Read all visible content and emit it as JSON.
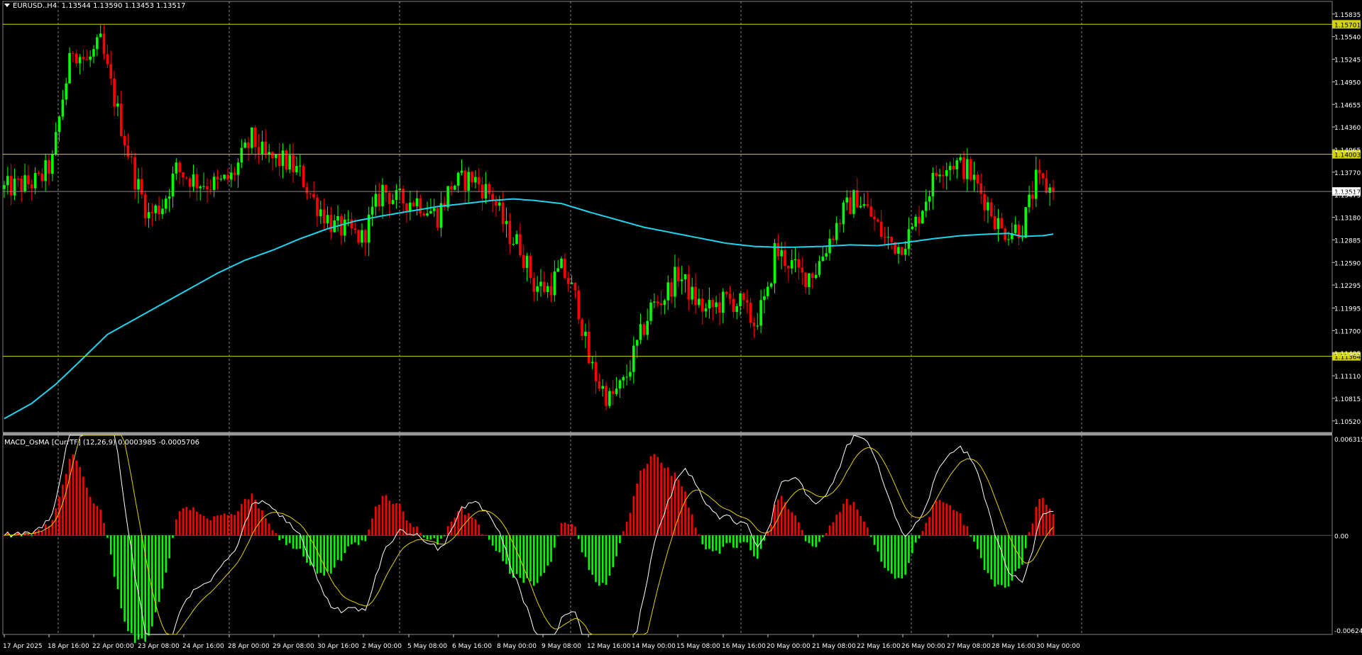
{
  "header": {
    "symbol": "EURUSD..H4",
    "ohlc": "1.13544 1.13590 1.13453 1.13517"
  },
  "indicator": {
    "label": "MACD_OsMA [CurrTF] (12,26,9) 0.0003985 -0.0005706"
  },
  "colors": {
    "background": "#000000",
    "bull": "#00ff00",
    "bear": "#ff0000",
    "ma": "#22d3ee",
    "hline": "#d4d400",
    "grid": "#bfbfbf",
    "macd": "#ffffff",
    "signal": "#e6d000"
  },
  "chart_data": [
    {
      "type": "candlestick",
      "ylim": [
        1.1037,
        1.16
      ],
      "grid": true,
      "price_ticks": [
        "1.15835",
        "1.15540",
        "1.15245",
        "1.14950",
        "1.14655",
        "1.14360",
        "1.14065",
        "1.13770",
        "1.13475",
        "1.13180",
        "1.12885",
        "1.12590",
        "1.12295",
        "1.11995",
        "1.11700",
        "1.11405",
        "1.11110",
        "1.10815",
        "1.10520"
      ],
      "horizontal_levels": [
        {
          "price": 1.15701,
          "label": "1.15701"
        },
        {
          "price": 1.14003,
          "label": "1.14003"
        },
        {
          "price": 1.11364,
          "label": "1.11364"
        }
      ],
      "current_price": {
        "price": 1.13517,
        "label": "1.13517"
      },
      "moving_average": [
        [
          0,
          1.1055
        ],
        [
          8,
          1.1075
        ],
        [
          15,
          1.11
        ],
        [
          22,
          1.113
        ],
        [
          30,
          1.1165
        ],
        [
          38,
          1.1185
        ],
        [
          46,
          1.1205
        ],
        [
          54,
          1.1225
        ],
        [
          62,
          1.1245
        ],
        [
          70,
          1.1262
        ],
        [
          78,
          1.1275
        ],
        [
          86,
          1.129
        ],
        [
          94,
          1.1303
        ],
        [
          102,
          1.1313
        ],
        [
          110,
          1.132
        ],
        [
          118,
          1.1326
        ],
        [
          126,
          1.1332
        ],
        [
          134,
          1.1336
        ],
        [
          142,
          1.134
        ],
        [
          148,
          1.1342
        ],
        [
          154,
          1.134
        ],
        [
          162,
          1.1336
        ],
        [
          170,
          1.1325
        ],
        [
          178,
          1.1315
        ],
        [
          186,
          1.1305
        ],
        [
          194,
          1.1298
        ],
        [
          202,
          1.1291
        ],
        [
          210,
          1.1284
        ],
        [
          218,
          1.128
        ],
        [
          224,
          1.1279
        ],
        [
          230,
          1.1279
        ],
        [
          238,
          1.128
        ],
        [
          246,
          1.1282
        ],
        [
          254,
          1.1281
        ],
        [
          262,
          1.1285
        ],
        [
          270,
          1.129
        ],
        [
          278,
          1.1294
        ],
        [
          286,
          1.1296
        ],
        [
          292,
          1.1297
        ],
        [
          296,
          1.1293
        ],
        [
          302,
          1.1294
        ],
        [
          305,
          1.1296
        ]
      ],
      "dates": [
        "17 Apr 2025",
        "18 Apr 16:00",
        "22 Apr 00:00",
        "23 Apr 08:00",
        "24 Apr 16:00",
        "28 Apr 00:00",
        "29 Apr 08:00",
        "30 Apr 16:00",
        "2 May 00:00",
        "5 May 08:00",
        "6 May 16:00",
        "8 May 00:00",
        "9 May 08:00",
        "12 May 16:00",
        "14 May 00:00",
        "15 May 08:00",
        "16 May 16:00",
        "20 May 00:00",
        "21 May 08:00",
        "22 May 16:00",
        "26 May 00:00",
        "27 May 08:00",
        "28 May 16:00",
        "30 May 00:00"
      ],
      "keyframes": [
        [
          0,
          1.1355
        ],
        [
          10,
          1.1365
        ],
        [
          14,
          1.139
        ],
        [
          17,
          1.1475
        ],
        [
          20,
          1.154
        ],
        [
          24,
          1.152
        ],
        [
          28,
          1.1545
        ],
        [
          31,
          1.149
        ],
        [
          35,
          1.142
        ],
        [
          38,
          1.137
        ],
        [
          42,
          1.132
        ],
        [
          46,
          1.1335
        ],
        [
          50,
          1.138
        ],
        [
          56,
          1.1365
        ],
        [
          62,
          1.136
        ],
        [
          66,
          1.137
        ],
        [
          72,
          1.142
        ],
        [
          76,
          1.1395
        ],
        [
          82,
          1.139
        ],
        [
          86,
          1.1375
        ],
        [
          90,
          1.134
        ],
        [
          96,
          1.1305
        ],
        [
          100,
          1.13
        ],
        [
          104,
          1.129
        ],
        [
          110,
          1.1355
        ],
        [
          114,
          1.134
        ],
        [
          120,
          1.134
        ],
        [
          126,
          1.132
        ],
        [
          130,
          1.136
        ],
        [
          136,
          1.137
        ],
        [
          142,
          1.1345
        ],
        [
          146,
          1.13
        ],
        [
          150,
          1.128
        ],
        [
          154,
          1.123
        ],
        [
          158,
          1.1225
        ],
        [
          162,
          1.125
        ],
        [
          164,
          1.1235
        ],
        [
          167,
          1.12
        ],
        [
          170,
          1.113
        ],
        [
          173,
          1.11
        ],
        [
          176,
          1.108
        ],
        [
          180,
          1.11
        ],
        [
          184,
          1.115
        ],
        [
          188,
          1.12
        ],
        [
          192,
          1.1215
        ],
        [
          196,
          1.1245
        ],
        [
          200,
          1.1215
        ],
        [
          204,
          1.1195
        ],
        [
          210,
          1.121
        ],
        [
          214,
          1.1205
        ],
        [
          218,
          1.118
        ],
        [
          222,
          1.1215
        ],
        [
          224,
          1.1275
        ],
        [
          228,
          1.126
        ],
        [
          232,
          1.124
        ],
        [
          236,
          1.125
        ],
        [
          240,
          1.129
        ],
        [
          244,
          1.1325
        ],
        [
          248,
          1.1345
        ],
        [
          252,
          1.132
        ],
        [
          256,
          1.129
        ],
        [
          260,
          1.128
        ],
        [
          264,
          1.13
        ],
        [
          268,
          1.1345
        ],
        [
          272,
          1.1385
        ],
        [
          276,
          1.139
        ],
        [
          280,
          1.138
        ],
        [
          286,
          1.1335
        ],
        [
          290,
          1.13
        ],
        [
          296,
          1.1305
        ],
        [
          300,
          1.1365
        ],
        [
          305,
          1.1352
        ]
      ]
    },
    {
      "type": "histogram+line",
      "ylim": [
        -0.006244,
        0.006315
      ],
      "ticks": [
        "0.006315",
        "0.00",
        "-0.006244"
      ],
      "series": [
        {
          "name": "MACD_OsMA",
          "kind": "histogram"
        },
        {
          "name": "MACD",
          "kind": "line"
        },
        {
          "name": "Signal",
          "kind": "line"
        }
      ]
    }
  ]
}
